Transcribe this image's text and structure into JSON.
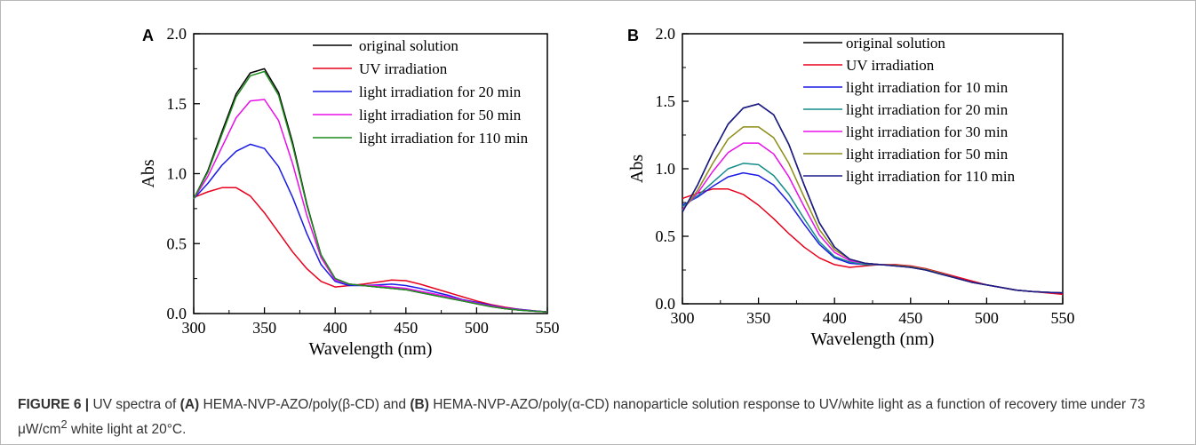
{
  "caption": {
    "label": "FIGURE 6 |",
    "t1": "UV spectra of",
    "a_marker": "(A)",
    "t2": "HEMA-NVP-AZO/poly(β-CD) and",
    "b_marker": "(B)",
    "t3": "HEMA-NVP-AZO/poly(α-CD) nanoparticle solution response to UV/white light as a function of recovery time under 73 μW/cm",
    "sup": "2",
    "t4": "white light at 20°C."
  },
  "chart_data": [
    {
      "type": "line",
      "panel": "A",
      "xlabel": "Wavelength (nm)",
      "ylabel": "Abs",
      "xlim": [
        300,
        550
      ],
      "ylim": [
        0,
        2.0
      ],
      "xticks": [
        "300",
        "350",
        "400",
        "450",
        "500",
        "550"
      ],
      "yticks": [
        "0.0",
        "0.5",
        "1.0",
        "1.5",
        "2.0"
      ],
      "grid": false,
      "legend_position": "top-right",
      "x": [
        300,
        310,
        320,
        330,
        340,
        350,
        360,
        370,
        380,
        390,
        400,
        410,
        420,
        430,
        440,
        450,
        460,
        470,
        480,
        490,
        500,
        510,
        520,
        530,
        540,
        550
      ],
      "series": [
        {
          "name": "original solution",
          "color": "#000000",
          "values": [
            0.82,
            1.02,
            1.3,
            1.57,
            1.72,
            1.75,
            1.58,
            1.22,
            0.78,
            0.42,
            0.25,
            0.21,
            0.2,
            0.19,
            0.18,
            0.17,
            0.15,
            0.13,
            0.11,
            0.09,
            0.07,
            0.05,
            0.035,
            0.025,
            0.018,
            0.012
          ]
        },
        {
          "name": "UV irradiation",
          "color": "#e8001c",
          "values": [
            0.83,
            0.87,
            0.9,
            0.9,
            0.84,
            0.72,
            0.58,
            0.44,
            0.32,
            0.23,
            0.19,
            0.2,
            0.21,
            0.225,
            0.24,
            0.235,
            0.21,
            0.18,
            0.15,
            0.12,
            0.09,
            0.065,
            0.045,
            0.03,
            0.02,
            0.012
          ]
        },
        {
          "name": "light irradiation for 20 min",
          "color": "#1a1ae6",
          "values": [
            0.82,
            0.93,
            1.06,
            1.16,
            1.21,
            1.18,
            1.05,
            0.83,
            0.57,
            0.35,
            0.23,
            0.2,
            0.2,
            0.205,
            0.21,
            0.2,
            0.18,
            0.155,
            0.13,
            0.1,
            0.08,
            0.06,
            0.04,
            0.03,
            0.02,
            0.012
          ]
        },
        {
          "name": "light irradiation for 50 min",
          "color": "#e810e8",
          "values": [
            0.82,
            0.98,
            1.19,
            1.4,
            1.52,
            1.53,
            1.38,
            1.07,
            0.7,
            0.4,
            0.24,
            0.21,
            0.2,
            0.2,
            0.19,
            0.18,
            0.16,
            0.14,
            0.12,
            0.095,
            0.075,
            0.055,
            0.038,
            0.027,
            0.018,
            0.012
          ]
        },
        {
          "name": "light irradiation for 110 min",
          "color": "#1f8c1f",
          "values": [
            0.82,
            1.01,
            1.28,
            1.55,
            1.7,
            1.73,
            1.56,
            1.2,
            0.77,
            0.42,
            0.25,
            0.21,
            0.2,
            0.19,
            0.18,
            0.17,
            0.15,
            0.13,
            0.11,
            0.09,
            0.07,
            0.05,
            0.035,
            0.025,
            0.018,
            0.012
          ]
        }
      ]
    },
    {
      "type": "line",
      "panel": "B",
      "xlabel": "Wavelength (nm)",
      "ylabel": "Abs",
      "xlim": [
        300,
        550
      ],
      "ylim": [
        0,
        2.0
      ],
      "xticks": [
        "300",
        "350",
        "400",
        "450",
        "500",
        "550"
      ],
      "yticks": [
        "0.0",
        "0.5",
        "1.0",
        "1.5",
        "2.0"
      ],
      "grid": false,
      "legend_position": "top-right",
      "x": [
        300,
        310,
        320,
        330,
        340,
        350,
        360,
        370,
        380,
        390,
        400,
        410,
        420,
        430,
        440,
        450,
        460,
        470,
        480,
        490,
        500,
        510,
        520,
        530,
        540,
        550
      ],
      "series": [
        {
          "name": "original solution",
          "color": "#000000",
          "values": [
            0.68,
            0.88,
            1.12,
            1.33,
            1.45,
            1.48,
            1.4,
            1.18,
            0.88,
            0.6,
            0.42,
            0.33,
            0.3,
            0.29,
            0.28,
            0.27,
            0.25,
            0.22,
            0.19,
            0.16,
            0.14,
            0.12,
            0.1,
            0.09,
            0.085,
            0.08
          ]
        },
        {
          "name": "UV irradiation",
          "color": "#e8001c",
          "values": [
            0.78,
            0.82,
            0.85,
            0.85,
            0.81,
            0.73,
            0.63,
            0.52,
            0.42,
            0.34,
            0.29,
            0.27,
            0.28,
            0.29,
            0.29,
            0.28,
            0.26,
            0.23,
            0.2,
            0.17,
            0.14,
            0.12,
            0.1,
            0.09,
            0.08,
            0.07
          ]
        },
        {
          "name": "light irradiation for 10 min",
          "color": "#1a1ae6",
          "values": [
            0.73,
            0.79,
            0.87,
            0.94,
            0.97,
            0.95,
            0.88,
            0.75,
            0.59,
            0.44,
            0.34,
            0.3,
            0.29,
            0.29,
            0.285,
            0.275,
            0.255,
            0.225,
            0.19,
            0.16,
            0.14,
            0.12,
            0.1,
            0.09,
            0.085,
            0.08
          ]
        },
        {
          "name": "light irradiation for 20 min",
          "color": "#148c8c",
          "values": [
            0.72,
            0.8,
            0.9,
            1.0,
            1.04,
            1.03,
            0.95,
            0.81,
            0.63,
            0.46,
            0.35,
            0.31,
            0.29,
            0.29,
            0.285,
            0.275,
            0.255,
            0.225,
            0.19,
            0.16,
            0.14,
            0.12,
            0.1,
            0.09,
            0.085,
            0.08
          ]
        },
        {
          "name": "light irradiation for 30 min",
          "color": "#e810e8",
          "values": [
            0.7,
            0.82,
            0.98,
            1.12,
            1.19,
            1.19,
            1.11,
            0.94,
            0.72,
            0.51,
            0.38,
            0.32,
            0.3,
            0.29,
            0.285,
            0.275,
            0.255,
            0.225,
            0.19,
            0.16,
            0.14,
            0.12,
            0.1,
            0.09,
            0.085,
            0.08
          ]
        },
        {
          "name": "light irradiation for 50 min",
          "color": "#8c8c14",
          "values": [
            0.69,
            0.84,
            1.04,
            1.22,
            1.31,
            1.31,
            1.23,
            1.04,
            0.79,
            0.55,
            0.4,
            0.33,
            0.3,
            0.29,
            0.285,
            0.275,
            0.255,
            0.225,
            0.19,
            0.16,
            0.14,
            0.12,
            0.1,
            0.09,
            0.085,
            0.08
          ]
        },
        {
          "name": "light irradiation for 110 min",
          "color": "#1a1a8c",
          "values": [
            0.68,
            0.88,
            1.12,
            1.33,
            1.45,
            1.48,
            1.4,
            1.18,
            0.88,
            0.6,
            0.42,
            0.33,
            0.3,
            0.29,
            0.28,
            0.27,
            0.25,
            0.22,
            0.19,
            0.16,
            0.14,
            0.12,
            0.1,
            0.09,
            0.085,
            0.08
          ]
        }
      ]
    }
  ]
}
